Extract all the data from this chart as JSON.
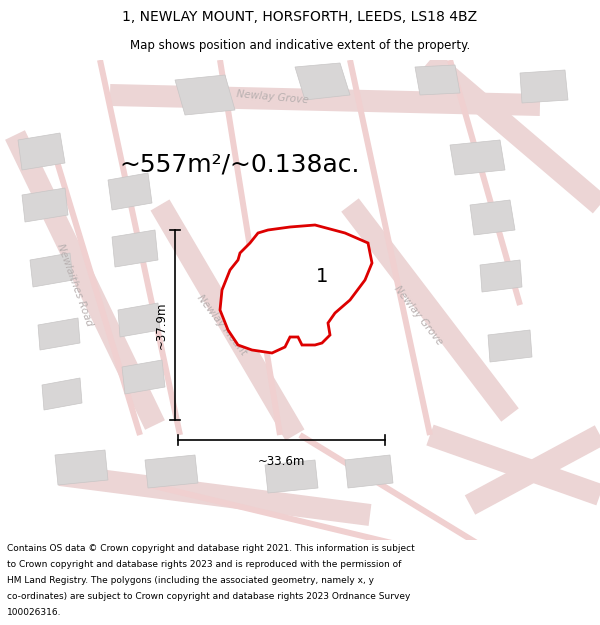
{
  "title": "1, NEWLAY MOUNT, HORSFORTH, LEEDS, LS18 4BZ",
  "subtitle": "Map shows position and indicative extent of the property.",
  "area_text": "~557m²/~0.138ac.",
  "width_label": "~33.6m",
  "height_label": "~37.9m",
  "property_number": "1",
  "footer_lines": [
    "Contains OS data © Crown copyright and database right 2021. This information is subject",
    "to Crown copyright and database rights 2023 and is reproduced with the permission of",
    "HM Land Registry. The polygons (including the associated geometry, namely x, y",
    "co-ordinates) are subject to Crown copyright and database rights 2023 Ordnance Survey",
    "100026316."
  ],
  "map_bg": "#f5f3f3",
  "road_color": "#ecd5d5",
  "road_thin_color": "#f0d0d0",
  "building_color": "#d8d6d6",
  "building_edge": "#c8c6c6",
  "property_fill": "#ffffff",
  "property_edge": "#dd0000",
  "road_label_color": "#b8b0b0",
  "title_fontsize": 10,
  "subtitle_fontsize": 8.5,
  "area_fontsize": 18,
  "label_fontsize": 8.5,
  "road_label_fontsize": 7.5,
  "footer_fontsize": 6.5,
  "prop_poly_x": [
    248,
    258,
    272,
    285,
    295,
    318,
    345,
    358,
    358,
    345,
    325,
    318,
    318,
    310,
    302,
    298,
    285,
    268,
    248,
    232,
    220,
    215,
    220,
    235,
    248
  ],
  "prop_poly_y": [
    248,
    260,
    270,
    268,
    268,
    268,
    262,
    270,
    290,
    310,
    318,
    310,
    302,
    302,
    310,
    318,
    322,
    322,
    318,
    312,
    300,
    278,
    258,
    250,
    248
  ]
}
